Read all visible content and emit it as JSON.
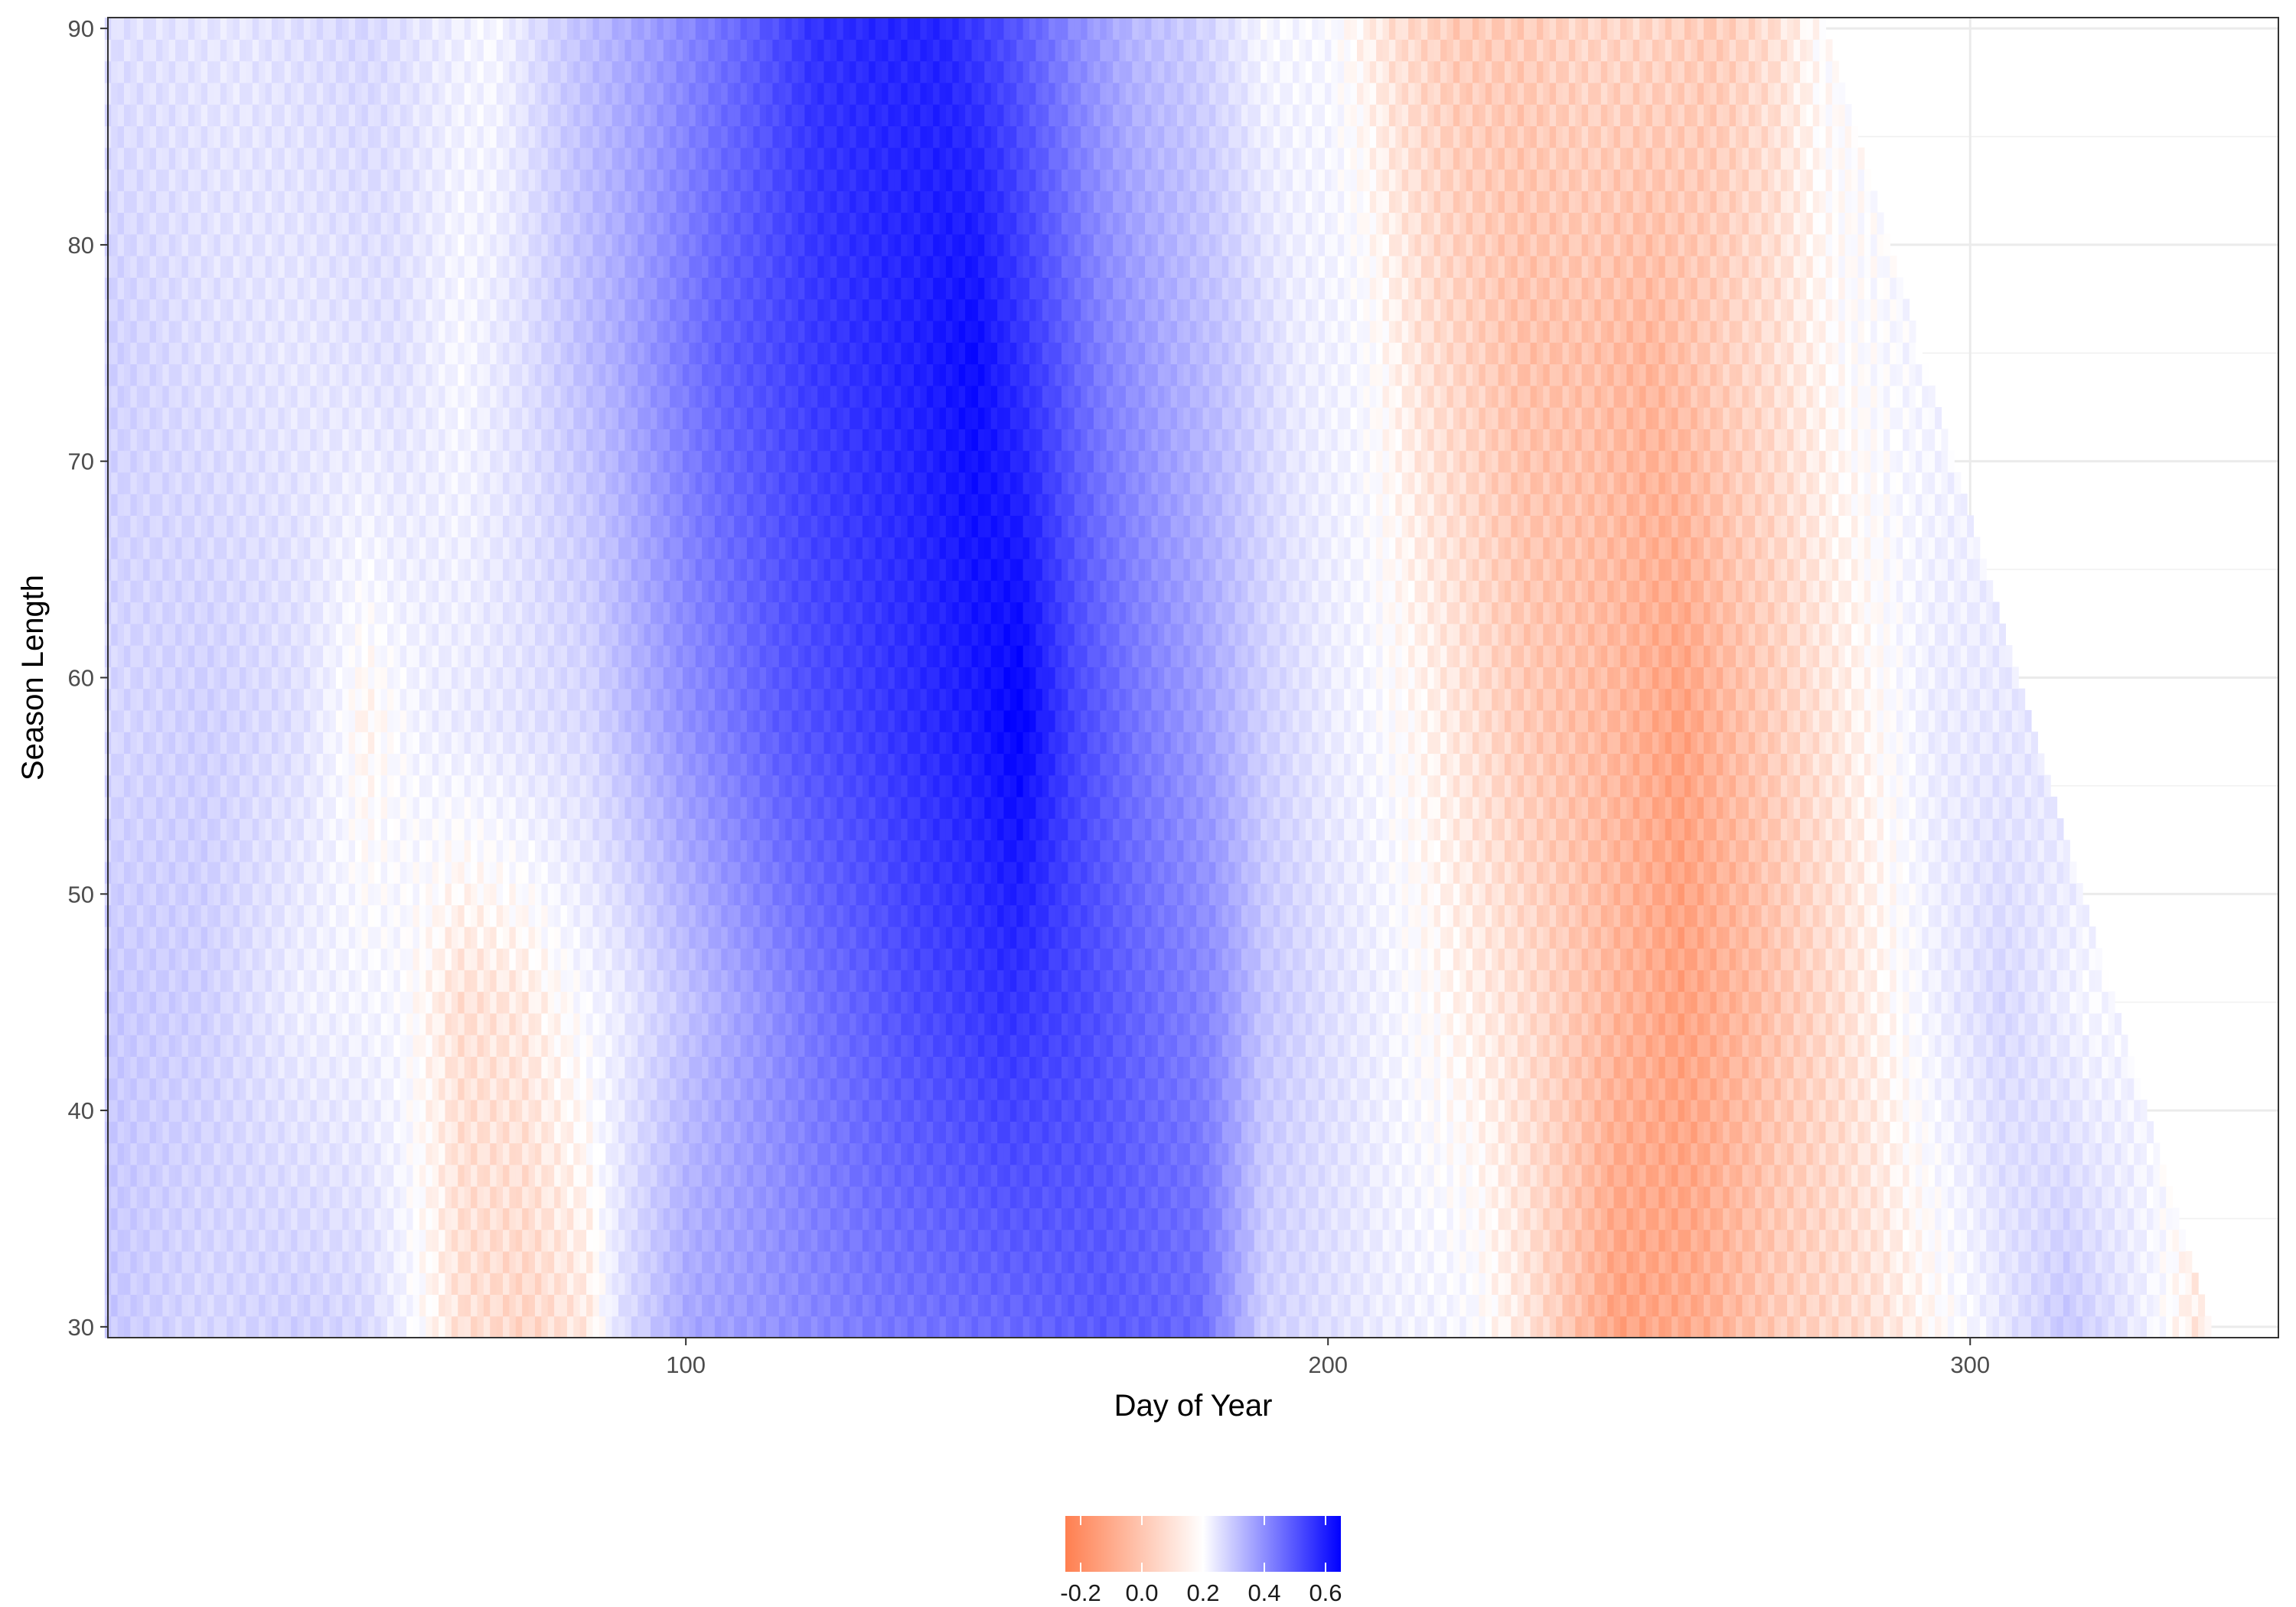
{
  "chart_data": {
    "type": "heatmap",
    "title": "",
    "xlabel": "Day of Year",
    "ylabel": "Season Length",
    "xlim": [
      10,
      348
    ],
    "ylim": [
      29.5,
      90.5
    ],
    "x_ticks": [
      100,
      200,
      300
    ],
    "y_ticks": [
      30,
      40,
      50,
      60,
      70,
      80,
      90
    ],
    "x_tick_labels": [
      "100",
      "200",
      "300"
    ],
    "y_tick_labels": [
      "30",
      "40",
      "50",
      "60",
      "70",
      "80",
      "90"
    ],
    "grid": true,
    "legend_position": "bottom",
    "colorbar": {
      "limits": [
        -0.25,
        0.65
      ],
      "ticks": [
        -0.2,
        0.0,
        0.2,
        0.4,
        0.6
      ],
      "tick_labels": [
        "-0.2",
        "0.0",
        "0.2",
        "0.4",
        "0.6"
      ],
      "low_color": "#ff7f50",
      "mid_color": "#ffffff",
      "high_color": "#0000ff"
    },
    "x_day_range": [
      10,
      347
    ],
    "y_length_range": [
      30,
      90
    ],
    "data_bound": "day + length <= 367",
    "anchor_rows": [
      {
        "length": 90,
        "profile": [
          [
            10,
            0.08
          ],
          [
            30,
            0.06
          ],
          [
            50,
            0.1
          ],
          [
            70,
            0.02
          ],
          [
            80,
            0.12
          ],
          [
            95,
            0.25
          ],
          [
            110,
            0.4
          ],
          [
            120,
            0.52
          ],
          [
            130,
            0.55
          ],
          [
            140,
            0.55
          ],
          [
            150,
            0.45
          ],
          [
            160,
            0.3
          ],
          [
            170,
            0.18
          ],
          [
            180,
            0.12
          ],
          [
            190,
            0.02
          ],
          [
            200,
            0.02
          ],
          [
            210,
            -0.06
          ],
          [
            220,
            -0.1
          ],
          [
            230,
            -0.1
          ],
          [
            240,
            -0.08
          ],
          [
            250,
            -0.08
          ],
          [
            260,
            -0.1
          ],
          [
            270,
            -0.06
          ],
          [
            277,
            0.0
          ]
        ]
      },
      {
        "length": 75,
        "profile": [
          [
            10,
            0.12
          ],
          [
            25,
            0.08
          ],
          [
            40,
            0.06
          ],
          [
            55,
            0.08
          ],
          [
            65,
            0.02
          ],
          [
            75,
            0.08
          ],
          [
            90,
            0.22
          ],
          [
            105,
            0.4
          ],
          [
            120,
            0.5
          ],
          [
            135,
            0.56
          ],
          [
            145,
            0.62
          ],
          [
            155,
            0.48
          ],
          [
            165,
            0.32
          ],
          [
            175,
            0.22
          ],
          [
            185,
            0.14
          ],
          [
            195,
            0.05
          ],
          [
            205,
            0.02
          ],
          [
            215,
            -0.06
          ],
          [
            230,
            -0.12
          ],
          [
            240,
            -0.12
          ],
          [
            250,
            -0.14
          ],
          [
            260,
            -0.1
          ],
          [
            270,
            -0.06
          ],
          [
            280,
            0.0
          ],
          [
            290,
            0.02
          ]
        ]
      },
      {
        "length": 58,
        "profile": [
          [
            10,
            0.1
          ],
          [
            25,
            0.12
          ],
          [
            40,
            0.08
          ],
          [
            50,
            -0.02
          ],
          [
            60,
            0.04
          ],
          [
            70,
            0.06
          ],
          [
            85,
            0.1
          ],
          [
            100,
            0.28
          ],
          [
            115,
            0.42
          ],
          [
            130,
            0.5
          ],
          [
            145,
            0.58
          ],
          [
            152,
            0.65
          ],
          [
            160,
            0.48
          ],
          [
            170,
            0.35
          ],
          [
            180,
            0.25
          ],
          [
            190,
            0.12
          ],
          [
            200,
            0.05
          ],
          [
            215,
            -0.02
          ],
          [
            230,
            -0.1
          ],
          [
            245,
            -0.14
          ],
          [
            255,
            -0.18
          ],
          [
            265,
            -0.12
          ],
          [
            280,
            -0.04
          ],
          [
            295,
            0.05
          ],
          [
            305,
            0.06
          ]
        ]
      },
      {
        "length": 45,
        "profile": [
          [
            10,
            0.14
          ],
          [
            25,
            0.12
          ],
          [
            40,
            0.04
          ],
          [
            55,
            0.02
          ],
          [
            65,
            -0.06
          ],
          [
            75,
            -0.04
          ],
          [
            90,
            0.05
          ],
          [
            105,
            0.2
          ],
          [
            120,
            0.35
          ],
          [
            135,
            0.45
          ],
          [
            150,
            0.52
          ],
          [
            162,
            0.46
          ],
          [
            172,
            0.38
          ],
          [
            182,
            0.3
          ],
          [
            190,
            0.15
          ],
          [
            200,
            0.08
          ],
          [
            215,
            0.0
          ],
          [
            230,
            -0.06
          ],
          [
            245,
            -0.14
          ],
          [
            255,
            -0.18
          ],
          [
            265,
            -0.14
          ],
          [
            280,
            -0.06
          ],
          [
            295,
            0.04
          ],
          [
            305,
            0.1
          ],
          [
            318,
            0.02
          ]
        ]
      },
      {
        "length": 30,
        "profile": [
          [
            10,
            0.14
          ],
          [
            25,
            0.1
          ],
          [
            40,
            0.12
          ],
          [
            50,
            0.1
          ],
          [
            57,
            0.02
          ],
          [
            65,
            -0.06
          ],
          [
            75,
            -0.08
          ],
          [
            85,
            -0.04
          ],
          [
            90,
            0.08
          ],
          [
            100,
            0.22
          ],
          [
            115,
            0.28
          ],
          [
            130,
            0.34
          ],
          [
            150,
            0.38
          ],
          [
            165,
            0.42
          ],
          [
            180,
            0.38
          ],
          [
            190,
            0.12
          ],
          [
            200,
            0.08
          ],
          [
            210,
            0.04
          ],
          [
            222,
            0.02
          ],
          [
            232,
            -0.06
          ],
          [
            245,
            -0.18
          ],
          [
            258,
            -0.16
          ],
          [
            270,
            -0.1
          ],
          [
            285,
            -0.06
          ],
          [
            300,
            0.02
          ],
          [
            315,
            0.14
          ],
          [
            325,
            0.06
          ],
          [
            335,
            -0.04
          ],
          [
            347,
            -0.02
          ]
        ]
      }
    ]
  }
}
